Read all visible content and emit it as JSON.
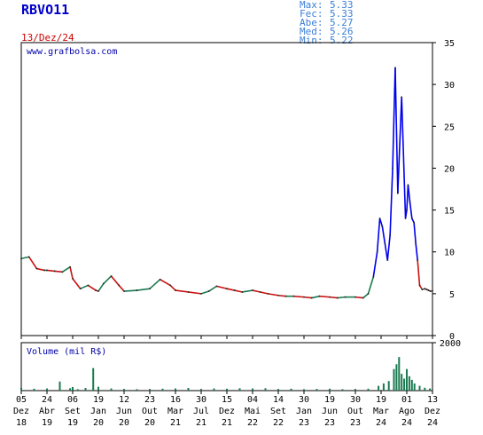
{
  "header": {
    "ticker": "RBVO11",
    "date": "13/Dez/24",
    "stats": [
      {
        "label": "Max:",
        "value": "5.33"
      },
      {
        "label": "Fec:",
        "value": "5.33"
      },
      {
        "label": "Abe:",
        "value": "5.27"
      },
      {
        "label": "Med:",
        "value": "5.26"
      },
      {
        "label": "Min:",
        "value": "5.22"
      }
    ]
  },
  "chart_data": [
    {
      "type": "line",
      "title": "",
      "watermark": "www.grafbolsa.com",
      "ylim": [
        0,
        35
      ],
      "yticks": [
        0,
        5,
        10,
        15,
        20,
        25,
        30,
        35
      ],
      "grid": false,
      "colors": {
        "up": "#1a7a50",
        "down": "#cc1111",
        "spike": "#0000ee"
      },
      "x_labels": [
        {
          "day": "05",
          "mon": "Dez",
          "yr": "18"
        },
        {
          "day": "24",
          "mon": "Abr",
          "yr": "19"
        },
        {
          "day": "06",
          "mon": "Set",
          "yr": "19"
        },
        {
          "day": "19",
          "mon": "Jan",
          "yr": "20"
        },
        {
          "day": "12",
          "mon": "Jun",
          "yr": "20"
        },
        {
          "day": "23",
          "mon": "Out",
          "yr": "20"
        },
        {
          "day": "16",
          "mon": "Mar",
          "yr": "21"
        },
        {
          "day": "30",
          "mon": "Jul",
          "yr": "21"
        },
        {
          "day": "15",
          "mon": "Dez",
          "yr": "21"
        },
        {
          "day": "04",
          "mon": "Mai",
          "yr": "22"
        },
        {
          "day": "14",
          "mon": "Set",
          "yr": "22"
        },
        {
          "day": "30",
          "mon": "Jan",
          "yr": "23"
        },
        {
          "day": "19",
          "mon": "Jun",
          "yr": "23"
        },
        {
          "day": "30",
          "mon": "Out",
          "yr": "23"
        },
        {
          "day": "19",
          "mon": "Mar",
          "yr": "24"
        },
        {
          "day": "01",
          "mon": "Ago",
          "yr": "24"
        },
        {
          "day": "13",
          "mon": "Dez",
          "yr": "24"
        }
      ],
      "series": [
        {
          "x": [
            0,
            0.3,
            0.6,
            0.9,
            1.0,
            1.3,
            1.6,
            1.9,
            2.0,
            2.3,
            2.6,
            2.9,
            3.0,
            3.2,
            3.5,
            3.8,
            4.0,
            4.5,
            5.0,
            5.4,
            5.8,
            6.0,
            6.5,
            7.0,
            7.3,
            7.6,
            8.0,
            8.3,
            8.6,
            9.0,
            9.3,
            9.6,
            10.0,
            10.3,
            10.6,
            11.0,
            11.3,
            11.6,
            12.0,
            12.3,
            12.6,
            13.0,
            13.3,
            13.5,
            13.7,
            13.85,
            13.95,
            14.05,
            14.15,
            14.25,
            14.35,
            14.45,
            14.55,
            14.65,
            14.8,
            14.95,
            15.0,
            15.05,
            15.12,
            15.2,
            15.28,
            15.35,
            15.42,
            15.5,
            15.6,
            15.7,
            15.78,
            15.85,
            15.92,
            16.0
          ],
          "values": [
            9.2,
            9.4,
            8.0,
            7.8,
            7.8,
            7.7,
            7.6,
            8.2,
            6.8,
            5.6,
            6.0,
            5.4,
            5.3,
            6.2,
            7.1,
            6.0,
            5.3,
            5.4,
            5.6,
            6.7,
            6.0,
            5.4,
            5.2,
            5.0,
            5.3,
            5.9,
            5.6,
            5.4,
            5.2,
            5.4,
            5.2,
            5.0,
            4.8,
            4.7,
            4.7,
            4.6,
            4.5,
            4.7,
            4.6,
            4.5,
            4.6,
            4.6,
            4.5,
            5.0,
            7.0,
            10.0,
            14.0,
            13.0,
            11.0,
            9.0,
            12.0,
            20.0,
            32.0,
            17.0,
            28.5,
            14.0,
            15.0,
            18.0,
            16.0,
            14.0,
            13.5,
            11.0,
            9.0,
            6.0,
            5.5,
            5.6,
            5.5,
            5.4,
            5.3,
            5.33
          ]
        }
      ]
    },
    {
      "type": "bar",
      "title": "Volume (mil R$)",
      "ylim": [
        0,
        2000
      ],
      "yticks": [
        2000
      ],
      "x": [
        0,
        0.5,
        1.0,
        1.5,
        1.9,
        2.0,
        2.2,
        2.5,
        2.8,
        3.0,
        3.5,
        4.0,
        4.5,
        5.0,
        5.5,
        6.0,
        6.5,
        7.0,
        7.5,
        8.0,
        8.5,
        9.0,
        9.5,
        10.0,
        10.5,
        11.0,
        11.5,
        12.0,
        12.5,
        13.0,
        13.5,
        13.9,
        14.1,
        14.3,
        14.5,
        14.6,
        14.7,
        14.8,
        14.9,
        15.0,
        15.1,
        15.2,
        15.3,
        15.5,
        15.7,
        15.9
      ],
      "values": [
        120,
        80,
        90,
        380,
        100,
        150,
        60,
        110,
        940,
        160,
        90,
        70,
        60,
        70,
        80,
        90,
        110,
        70,
        90,
        80,
        100,
        90,
        100,
        70,
        80,
        60,
        70,
        80,
        60,
        70,
        80,
        200,
        300,
        400,
        900,
        1100,
        1400,
        700,
        500,
        900,
        600,
        450,
        300,
        200,
        120,
        90
      ]
    }
  ]
}
